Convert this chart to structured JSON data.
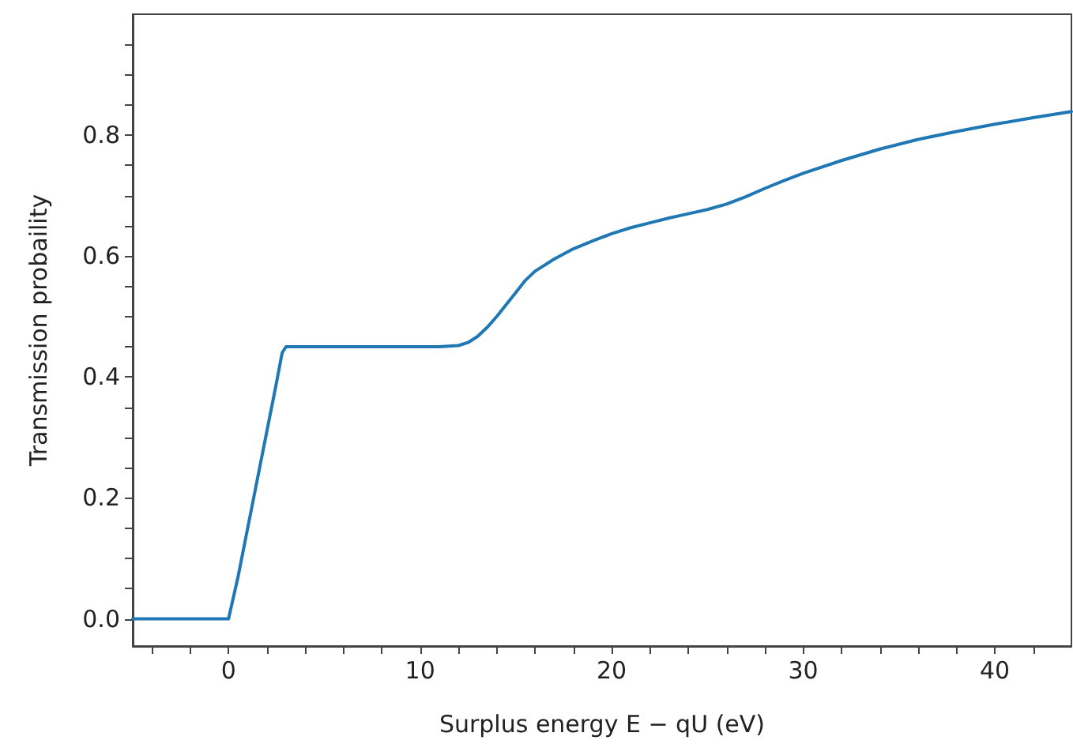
{
  "chart_data": {
    "type": "line",
    "xlabel": "Surplus energy E − qU (eV)",
    "ylabel": "Transmission probaility",
    "x": [
      -5,
      0,
      0.5,
      1,
      1.5,
      2,
      2.5,
      2.8,
      3,
      5,
      8,
      11,
      12,
      12.5,
      13,
      13.5,
      14,
      14.5,
      15,
      15.5,
      16,
      17,
      18,
      19,
      20,
      21,
      22,
      23,
      24,
      25,
      26,
      27,
      28,
      29,
      30,
      32,
      34,
      36,
      38,
      40,
      42,
      44
    ],
    "series": [
      {
        "color": "#1f77b4",
        "values": [
          0,
          0,
          0.07,
          0.15,
          0.23,
          0.31,
          0.39,
          0.44,
          0.45,
          0.45,
          0.45,
          0.45,
          0.452,
          0.457,
          0.467,
          0.482,
          0.5,
          0.52,
          0.54,
          0.56,
          0.575,
          0.595,
          0.612,
          0.625,
          0.637,
          0.647,
          0.655,
          0.663,
          0.67,
          0.677,
          0.686,
          0.698,
          0.712,
          0.725,
          0.737,
          0.758,
          0.777,
          0.793,
          0.806,
          0.818,
          0.829,
          0.839
        ]
      }
    ],
    "xlim": [
      -5,
      44
    ],
    "xticks": [
      {
        "value": -4,
        "label": null
      },
      {
        "value": -2,
        "label": null
      },
      0,
      {
        "value": 2,
        "label": null
      },
      {
        "value": 4,
        "label": null
      },
      {
        "value": 6,
        "label": null
      },
      {
        "value": 8,
        "label": null
      },
      10,
      {
        "value": 12,
        "label": null
      },
      {
        "value": 14,
        "label": null
      },
      {
        "value": 16,
        "label": null
      },
      {
        "value": 18,
        "label": null
      },
      20,
      {
        "value": 22,
        "label": null
      },
      {
        "value": 24,
        "label": null
      },
      {
        "value": 26,
        "label": null
      },
      {
        "value": 28,
        "label": null
      },
      30,
      {
        "value": 32,
        "label": null
      },
      {
        "value": 34,
        "label": null
      },
      {
        "value": 36,
        "label": null
      },
      {
        "value": 38,
        "label": null
      },
      40,
      {
        "value": 42,
        "label": null
      }
    ],
    "ylim": [
      -0.045,
      1.0
    ],
    "yticks": [
      {
        "value": 0,
        "label": "0.0"
      },
      {
        "value": 0.05,
        "label": null
      },
      {
        "value": 0.1,
        "label": null
      },
      {
        "value": 0.15,
        "label": null
      },
      {
        "value": 0.2,
        "label": "0.2"
      },
      {
        "value": 0.25,
        "label": null
      },
      {
        "value": 0.3,
        "label": null
      },
      {
        "value": 0.35,
        "label": null
      },
      {
        "value": 0.4,
        "label": "0.4"
      },
      {
        "value": 0.45,
        "label": null
      },
      {
        "value": 0.5,
        "label": null
      },
      {
        "value": 0.55,
        "label": null
      },
      {
        "value": 0.6,
        "label": "0.6"
      },
      {
        "value": 0.65,
        "label": null
      },
      {
        "value": 0.7,
        "label": null
      },
      {
        "value": 0.75,
        "label": null
      },
      {
        "value": 0.8,
        "label": "0.8"
      },
      {
        "value": 0.85,
        "label": null
      },
      {
        "value": 0.9,
        "label": null
      },
      {
        "value": 0.95,
        "label": null
      }
    ],
    "grid": false,
    "marker": "none",
    "line_style": "solid"
  }
}
